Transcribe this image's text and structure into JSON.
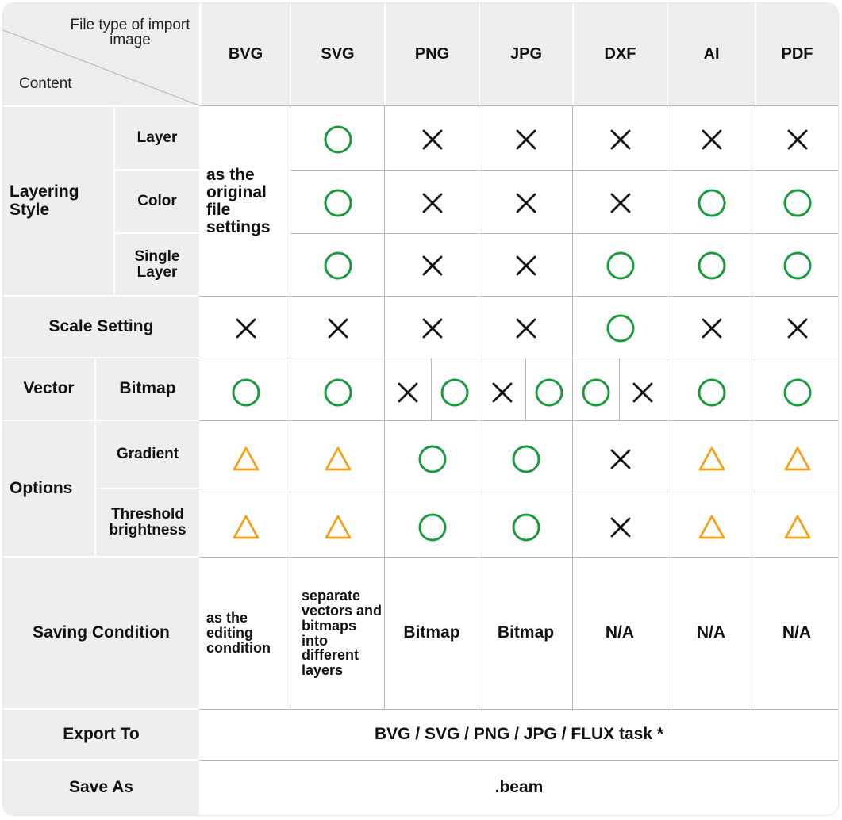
{
  "header": {
    "corner_top": "File type of import image",
    "corner_bottom": "Content",
    "columns": [
      "BVG",
      "SVG",
      "PNG",
      "JPG",
      "DXF",
      "AI",
      "PDF"
    ]
  },
  "row_labels": {
    "layering_style": "Layering Style",
    "layer": "Layer",
    "color": "Color",
    "single_layer": "Single Layer",
    "scale_setting": "Scale Setting",
    "vector": "Vector",
    "bitmap": "Bitmap",
    "options": "Options",
    "gradient": "Gradient",
    "threshold_brightness": "Threshold brightness",
    "saving_condition": "Saving Condition",
    "export_to": "Export To",
    "save_as": "Save As"
  },
  "cells": {
    "layering_bvg": "as the original file settings",
    "saving_bvg": "as the editing condition",
    "saving_svg": "separate vectors and bitmaps into different layers",
    "saving_png": "Bitmap",
    "saving_jpg": "Bitmap",
    "saving_dxf": "N/A",
    "saving_ai": "N/A",
    "saving_pdf": "N/A",
    "export_to_value": "BVG / SVG / PNG / JPG / FLUX task *",
    "save_as_value": ".beam"
  },
  "symbols": {
    "layer": [
      "circle",
      "cross",
      "cross",
      "cross",
      "cross",
      "cross"
    ],
    "color": [
      "circle",
      "cross",
      "cross",
      "cross",
      "circle",
      "circle"
    ],
    "single_layer": [
      "circle",
      "cross",
      "cross",
      "circle",
      "circle",
      "circle"
    ],
    "scale_setting": [
      "cross",
      "cross",
      "cross",
      "cross",
      "circle",
      "cross",
      "cross"
    ],
    "vector_bitmap": [
      "circle",
      "circle",
      "cross",
      "circle",
      "cross",
      "circle",
      "circle",
      "cross",
      "circle",
      "circle"
    ],
    "gradient": [
      "triangle",
      "triangle",
      "circle",
      "circle",
      "cross",
      "triangle",
      "triangle"
    ],
    "threshold_brightness": [
      "triangle",
      "triangle",
      "circle",
      "circle",
      "cross",
      "triangle",
      "triangle"
    ]
  },
  "colors": {
    "circle": "#1a9a3c",
    "cross": "#111111",
    "triangle": "#f5a01a",
    "header_bg": "#eeeeee",
    "grid": "#b9b9b9"
  }
}
